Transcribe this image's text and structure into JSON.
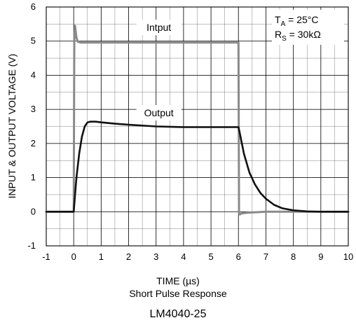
{
  "chart_data": {
    "type": "line",
    "xlabel": "TIME (µs)",
    "ylabel": "INPUT & OUTPUT VOLTAGE (V)",
    "subtitle": "Short Pulse Response",
    "part_number": "LM4040-25",
    "xlim": [
      -1,
      10
    ],
    "ylim": [
      -1,
      6
    ],
    "x_ticks": [
      "-1",
      "0",
      "1",
      "2",
      "3",
      "4",
      "5",
      "6",
      "7",
      "8",
      "9",
      "10"
    ],
    "y_ticks": [
      "-1",
      "0",
      "1",
      "2",
      "3",
      "4",
      "5",
      "6"
    ],
    "grid": true,
    "conditions": {
      "ta": "T",
      "ta_sub": "A",
      "ta_val": " = 25°C",
      "rs": "R",
      "rs_sub": "S",
      "rs_val": " = 30kΩ"
    },
    "colors": {
      "input": "#8a8a8a",
      "output": "#111111",
      "grid": "#000000"
    },
    "series": [
      {
        "name": "Intput",
        "label_at": [
          3.1,
          5.4
        ],
        "x": [
          -1,
          0,
          0.02,
          0.05,
          0.1,
          0.15,
          0.25,
          1,
          3,
          5,
          6,
          6.02,
          6.05,
          6.1,
          6.3,
          7,
          8,
          9,
          10
        ],
        "y": [
          0,
          0,
          5.0,
          5.45,
          5.1,
          4.98,
          4.96,
          4.96,
          4.96,
          4.96,
          4.96,
          -0.05,
          -0.08,
          -0.05,
          -0.03,
          0.0,
          0.0,
          0.0,
          0.0
        ]
      },
      {
        "name": "Output",
        "label_at": [
          3.1,
          2.9
        ],
        "x": [
          -1,
          0,
          0.05,
          0.1,
          0.2,
          0.3,
          0.4,
          0.5,
          0.6,
          0.8,
          1,
          1.5,
          2,
          3,
          4,
          5,
          6,
          6.05,
          6.2,
          6.4,
          6.6,
          6.8,
          7,
          7.3,
          7.6,
          8,
          8.5,
          9,
          10
        ],
        "y": [
          0,
          0,
          0.5,
          1.0,
          1.7,
          2.2,
          2.5,
          2.62,
          2.64,
          2.64,
          2.62,
          2.58,
          2.55,
          2.5,
          2.48,
          2.48,
          2.48,
          2.3,
          1.7,
          1.15,
          0.8,
          0.55,
          0.38,
          0.2,
          0.1,
          0.04,
          0.01,
          0.0,
          0.0
        ]
      }
    ]
  }
}
